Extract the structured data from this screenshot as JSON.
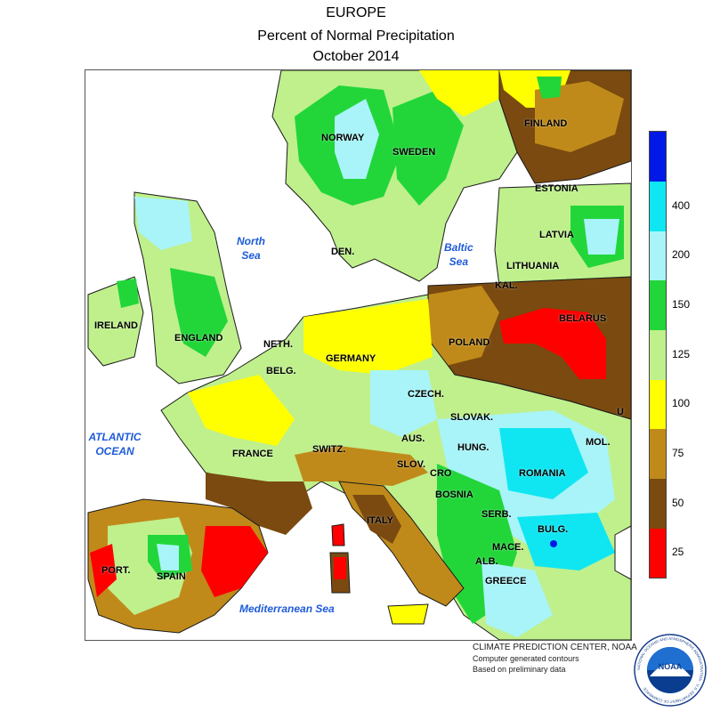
{
  "header": {
    "line1": "EUROPE",
    "line2": "Percent of Normal Precipitation",
    "line3": "October 2014"
  },
  "map": {
    "countries": [
      {
        "key": "finland",
        "name": "FINLAND"
      },
      {
        "key": "norway",
        "name": "NORWAY"
      },
      {
        "key": "sweden",
        "name": "SWEDEN"
      },
      {
        "key": "estonia",
        "name": "ESTONIA"
      },
      {
        "key": "latvia",
        "name": "LATVIA"
      },
      {
        "key": "lithuania",
        "name": "LITHUANIA"
      },
      {
        "key": "kal",
        "name": "KAL."
      },
      {
        "key": "belarus",
        "name": "BELARUS"
      },
      {
        "key": "den",
        "name": "DEN."
      },
      {
        "key": "ireland",
        "name": "IRELAND"
      },
      {
        "key": "england",
        "name": "ENGLAND"
      },
      {
        "key": "neth",
        "name": "NETH."
      },
      {
        "key": "belg",
        "name": "BELG."
      },
      {
        "key": "germany",
        "name": "GERMANY"
      },
      {
        "key": "poland",
        "name": "POLAND"
      },
      {
        "key": "czech",
        "name": "CZECH."
      },
      {
        "key": "slovak",
        "name": "SLOVAK."
      },
      {
        "key": "u",
        "name": "U"
      },
      {
        "key": "france",
        "name": "FRANCE"
      },
      {
        "key": "switz",
        "name": "SWITZ."
      },
      {
        "key": "aus",
        "name": "AUS."
      },
      {
        "key": "hung",
        "name": "HUNG."
      },
      {
        "key": "mol",
        "name": "MOL."
      },
      {
        "key": "slov",
        "name": "SLOV."
      },
      {
        "key": "cro",
        "name": "CRO"
      },
      {
        "key": "romania",
        "name": "ROMANIA"
      },
      {
        "key": "bosnia",
        "name": "BOSNIA"
      },
      {
        "key": "italy",
        "name": "ITALY"
      },
      {
        "key": "serb",
        "name": "SERB."
      },
      {
        "key": "bulg",
        "name": "BULG."
      },
      {
        "key": "mace",
        "name": "MACE."
      },
      {
        "key": "alb",
        "name": "ALB."
      },
      {
        "key": "greece",
        "name": "GREECE"
      },
      {
        "key": "port",
        "name": "PORT."
      },
      {
        "key": "spain",
        "name": "SPAIN"
      }
    ],
    "seas": [
      {
        "key": "north-sea",
        "name": "North\nSea"
      },
      {
        "key": "baltic-sea",
        "name": "Baltic\nSea"
      },
      {
        "key": "atlantic-ocean",
        "name": "ATLANTIC\nOCEAN"
      },
      {
        "key": "mediterranean-sea",
        "name": "Mediterranean Sea"
      }
    ]
  },
  "legend": {
    "bins": [
      {
        "color": "#ff0000"
      },
      {
        "color": "#7a4a10"
      },
      {
        "color": "#c08a1a"
      },
      {
        "color": "#ffff00"
      },
      {
        "color": "#bff08c"
      },
      {
        "color": "#22d63a"
      },
      {
        "color": "#a8f4f8"
      },
      {
        "color": "#10e6f2"
      },
      {
        "color": "#0019e6"
      }
    ],
    "labels": [
      "25",
      "50",
      "75",
      "100",
      "125",
      "150",
      "200",
      "400"
    ]
  },
  "credits": {
    "line1": "CLIMATE PREDICTION CENTER, NOAA",
    "line2": "Computer generated contours",
    "line3": "Based on preliminary data"
  },
  "logo": {
    "text": "NOAA",
    "ring_text": "NATIONAL OCEANIC AND ATMOSPHERIC ADMINISTRATION · U.S. DEPARTMENT OF COMMERCE"
  }
}
